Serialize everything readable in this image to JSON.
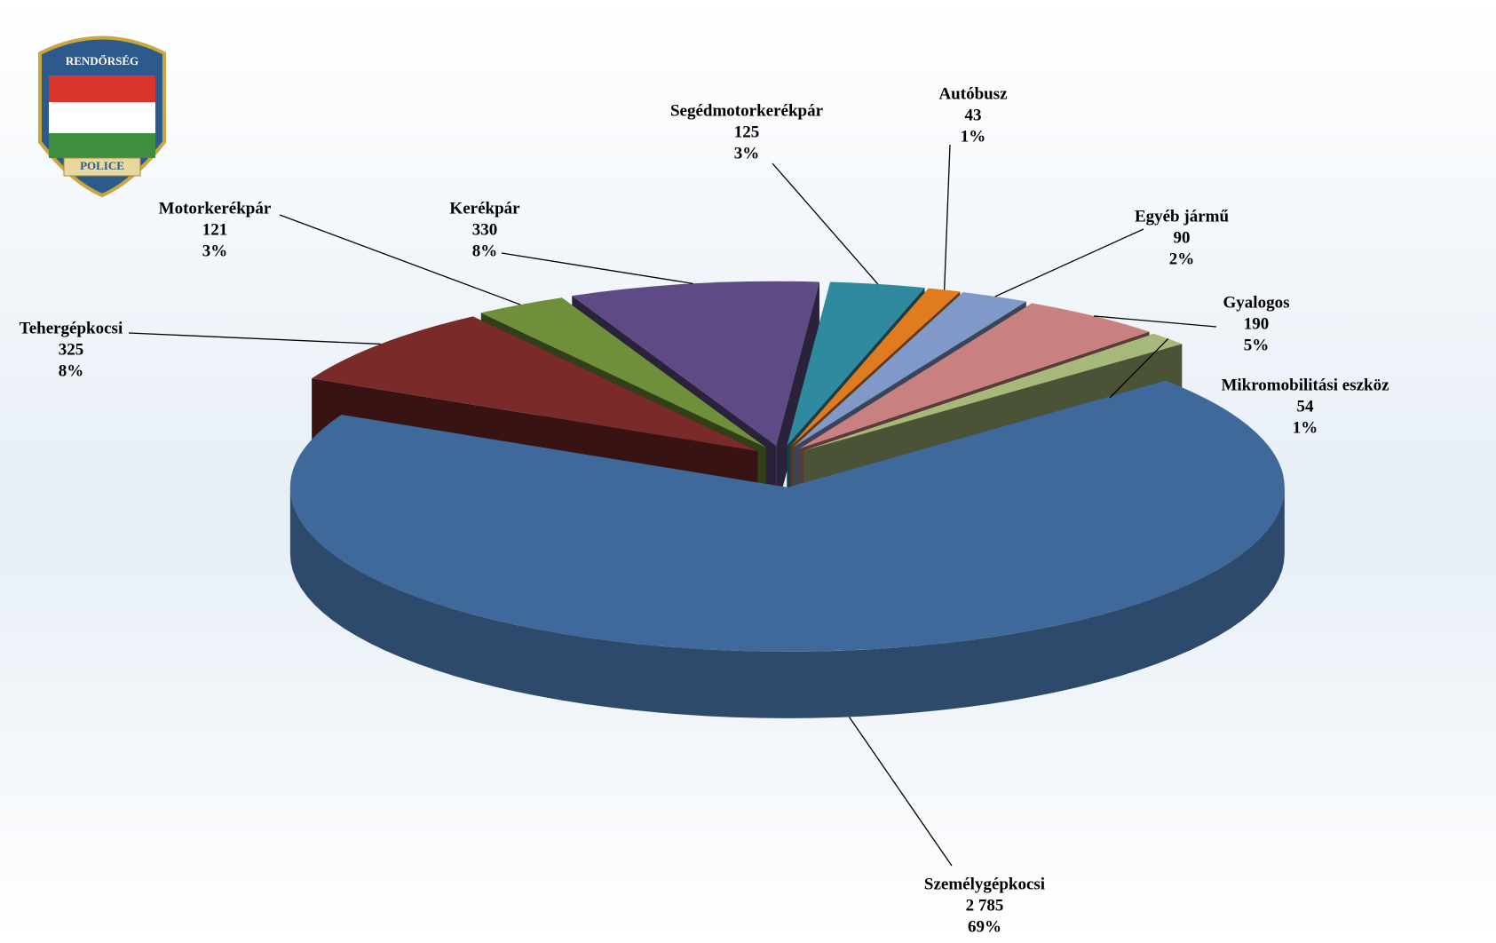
{
  "logo": {
    "top": "RENDŐRSÉG",
    "bottom": "POLICE"
  },
  "chart_data": {
    "type": "pie3d",
    "categories": [
      "Segédmotorkerékpár",
      "Autóbusz",
      "Egyéb jármű",
      "Gyalogos",
      "Mikromobilitási eszköz",
      "Személygépkocsi",
      "Tehergépkocsi",
      "Motorkerékpár",
      "Kerékpár"
    ],
    "values": [
      125,
      43,
      90,
      190,
      54,
      2785,
      325,
      121,
      330
    ],
    "value_labels": [
      "125",
      "43",
      "90",
      "190",
      "54",
      "2 785",
      "325",
      "121",
      "330"
    ],
    "percent_labels": [
      "3%",
      "1%",
      "2%",
      "5%",
      "1%",
      "69%",
      "8%",
      "3%",
      "8%"
    ],
    "colors": [
      "#2f8aa0",
      "#e07b20",
      "#8099c8",
      "#c98080",
      "#a6b87a",
      "#40699b",
      "#7b2a2a",
      "#6f8f3a",
      "#5e4a84"
    ]
  }
}
